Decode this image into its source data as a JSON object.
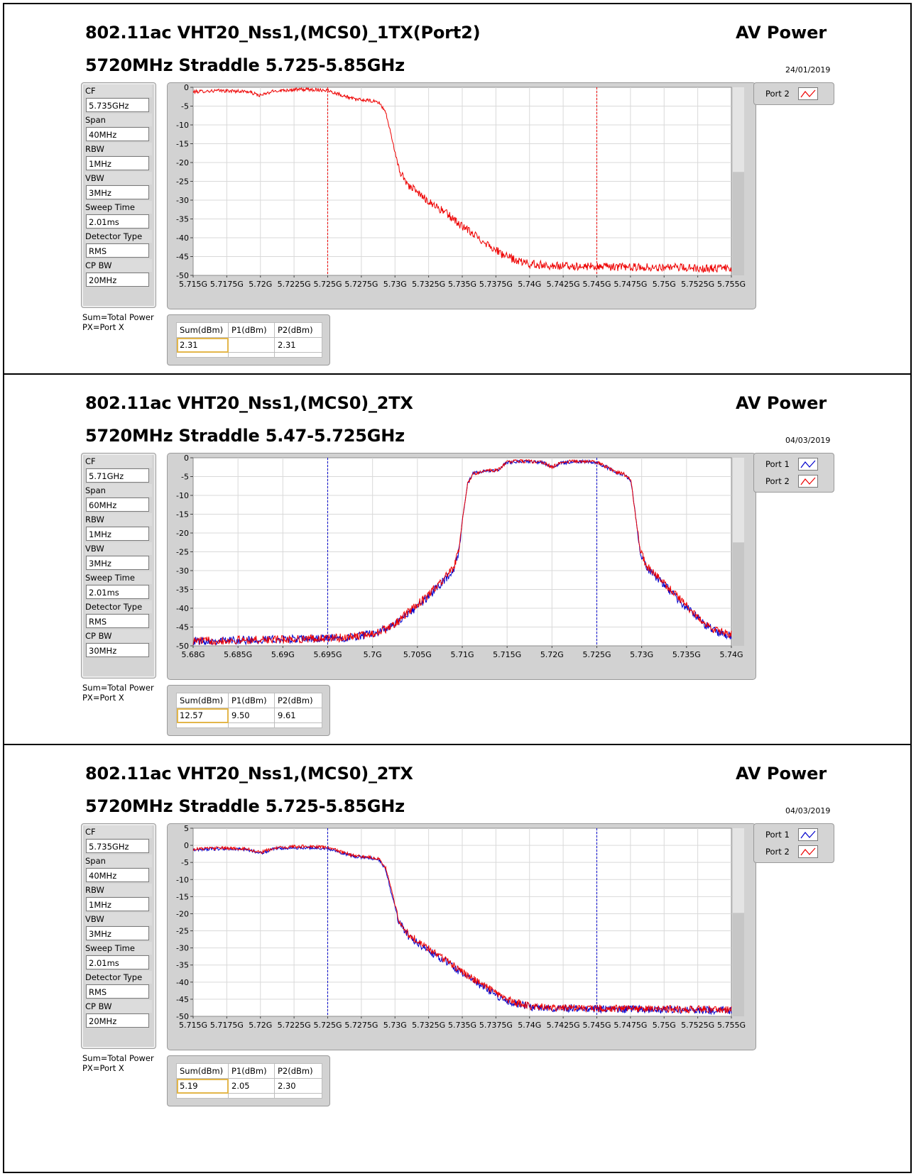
{
  "notes": {
    "sum": "Sum=Total Power",
    "px": "PX=Port X"
  },
  "param_labels": [
    "CF",
    "Span",
    "RBW",
    "VBW",
    "Sweep Time",
    "Detector Type",
    "CP BW"
  ],
  "table_headers": [
    "Sum(dBm)",
    "P1(dBm)",
    "P2(dBm)"
  ],
  "colors": {
    "port1": "#0000cc",
    "port2": "#ee0000",
    "grid": "#d9d9d9",
    "plot_bg": "#ffffff",
    "table_highlight": "#e3b64a"
  },
  "legend_icon": "line-sample-icon",
  "panels": [
    {
      "title1": "802.11ac VHT20_Nss1,(MCS0)_1TX(Port2)",
      "title2": "5720MHz Straddle 5.725-5.85GHz",
      "measure": "AV Power",
      "date": "24/01/2019",
      "params": [
        "5.735GHz",
        "40MHz",
        "1MHz",
        "3MHz",
        "2.01ms",
        "RMS",
        "20MHz"
      ],
      "legend": [
        "Port 2"
      ],
      "table": [
        "2.31",
        "",
        "2.31"
      ]
    },
    {
      "title1": "802.11ac VHT20_Nss1,(MCS0)_2TX",
      "title2": "5720MHz Straddle 5.47-5.725GHz",
      "measure": "AV Power",
      "date": "04/03/2019",
      "params": [
        "5.71GHz",
        "60MHz",
        "1MHz",
        "3MHz",
        "2.01ms",
        "RMS",
        "30MHz"
      ],
      "legend": [
        "Port 1",
        "Port 2"
      ],
      "table": [
        "12.57",
        "9.50",
        "9.61"
      ]
    },
    {
      "title1": "802.11ac VHT20_Nss1,(MCS0)_2TX",
      "title2": "5720MHz Straddle 5.725-5.85GHz",
      "measure": "AV Power",
      "date": "04/03/2019",
      "params": [
        "5.735GHz",
        "40MHz",
        "1MHz",
        "3MHz",
        "2.01ms",
        "RMS",
        "20MHz"
      ],
      "legend": [
        "Port 1",
        "Port 2"
      ],
      "table": [
        "5.19",
        "2.05",
        "2.30"
      ]
    }
  ],
  "chart_data": [
    {
      "type": "line",
      "title": "802.11ac VHT20_Nss1,(MCS0)_1TX(Port2)",
      "xlabel": "",
      "ylabel": "",
      "x_tick_labels": [
        "5.715G",
        "5.7175G",
        "5.72G",
        "5.7225G",
        "5.725G",
        "5.7275G",
        "5.73G",
        "5.7325G",
        "5.735G",
        "5.7375G",
        "5.74G",
        "5.7425G",
        "5.745G",
        "5.7475G",
        "5.75G",
        "5.7525G",
        "5.755G"
      ],
      "xlim_mhz": [
        5715,
        5755
      ],
      "ylim": [
        -50,
        0
      ],
      "y_ticks": [
        0,
        -5,
        -10,
        -15,
        -20,
        -25,
        -30,
        -35,
        -40,
        -45,
        -50
      ],
      "markers_mhz": [
        5725,
        5745
      ],
      "marker_color": "#ee0000",
      "grid": true,
      "series": [
        {
          "name": "Port 2",
          "color": "#ee0000",
          "x_mhz": [
            5715,
            5716,
            5717,
            5718,
            5719,
            5720,
            5720.5,
            5721,
            5722,
            5723,
            5724,
            5725,
            5726,
            5727,
            5728,
            5728.8,
            5729.3,
            5729.8,
            5730.3,
            5731,
            5732,
            5733,
            5734,
            5735,
            5736,
            5737,
            5738,
            5739,
            5740,
            5742,
            5745,
            5750,
            5755
          ],
          "y_dbm": [
            -1.2,
            -1.0,
            -0.9,
            -1.0,
            -1.1,
            -2.2,
            -1.6,
            -1.0,
            -0.7,
            -0.6,
            -0.6,
            -0.8,
            -2.0,
            -3.2,
            -3.5,
            -4.0,
            -6.5,
            -14,
            -22,
            -26,
            -29,
            -31.5,
            -34,
            -37,
            -39.5,
            -42,
            -44.5,
            -46,
            -47,
            -47.5,
            -47.7,
            -47.9,
            -48.2
          ]
        }
      ]
    },
    {
      "type": "line",
      "title": "802.11ac VHT20_Nss1,(MCS0)_2TX",
      "xlabel": "",
      "ylabel": "",
      "x_tick_labels": [
        "5.68G",
        "5.685G",
        "5.69G",
        "5.695G",
        "5.7G",
        "5.705G",
        "5.71G",
        "5.715G",
        "5.72G",
        "5.725G",
        "5.73G",
        "5.735G",
        "5.74G"
      ],
      "xlim_mhz": [
        5680,
        5740
      ],
      "ylim": [
        -50,
        0
      ],
      "y_ticks": [
        0,
        -5,
        -10,
        -15,
        -20,
        -25,
        -30,
        -35,
        -40,
        -45,
        -50
      ],
      "markers_mhz": [
        5695,
        5725
      ],
      "marker_color": "#0000cc",
      "grid": true,
      "series": [
        {
          "name": "Port 1",
          "color": "#0000cc",
          "x_mhz": [
            5680,
            5685,
            5690,
            5695,
            5697,
            5699,
            5700,
            5701,
            5702,
            5703,
            5704,
            5705,
            5706,
            5707,
            5708,
            5709,
            5709.6,
            5710.1,
            5710.6,
            5711.2,
            5712,
            5713,
            5714,
            5715,
            5716,
            5717,
            5718,
            5719,
            5720,
            5721,
            5722,
            5723,
            5724,
            5725,
            5726,
            5727,
            5728,
            5728.8,
            5729.3,
            5729.8,
            5730.5,
            5731,
            5732,
            5733,
            5734,
            5735,
            5736,
            5737,
            5738,
            5739,
            5740
          ],
          "y_dbm": [
            -48.7,
            -48.5,
            -48.3,
            -48.0,
            -47.8,
            -47.2,
            -46.7,
            -46,
            -45,
            -43.5,
            -41.5,
            -39.5,
            -37.5,
            -35,
            -32.5,
            -30,
            -25,
            -15,
            -7,
            -4.2,
            -3.8,
            -3.5,
            -3.3,
            -1.2,
            -1.0,
            -1.0,
            -1.1,
            -1.3,
            -2.6,
            -1.4,
            -1.1,
            -1.0,
            -1.0,
            -1.3,
            -2.4,
            -3.8,
            -4.4,
            -6,
            -15,
            -25,
            -29,
            -30.5,
            -32.5,
            -35,
            -37.5,
            -39.8,
            -42,
            -44.3,
            -45.8,
            -46.8,
            -47.3
          ]
        },
        {
          "name": "Port 2",
          "color": "#ee0000",
          "x_mhz": [
            5680,
            5685,
            5690,
            5695,
            5697,
            5699,
            5700,
            5701,
            5702,
            5703,
            5704,
            5705,
            5706,
            5707,
            5708,
            5709,
            5709.6,
            5710.1,
            5710.6,
            5711.2,
            5712,
            5713,
            5714,
            5715,
            5716,
            5717,
            5718,
            5719,
            5720,
            5721,
            5722,
            5723,
            5724,
            5725,
            5726,
            5727,
            5728,
            5728.8,
            5729.3,
            5729.8,
            5730.5,
            5731,
            5732,
            5733,
            5734,
            5735,
            5736,
            5737,
            5738,
            5739,
            5740
          ],
          "y_dbm": [
            -48.7,
            -48.5,
            -48.3,
            -48.0,
            -47.8,
            -47.2,
            -46.7,
            -46,
            -45,
            -43.2,
            -41,
            -39,
            -37,
            -34.5,
            -32,
            -29.5,
            -25,
            -15,
            -7,
            -4.2,
            -3.8,
            -3.4,
            -3.2,
            -1.1,
            -0.9,
            -0.9,
            -1.0,
            -1.2,
            -2.5,
            -1.3,
            -1.0,
            -0.9,
            -0.9,
            -1.2,
            -2.3,
            -3.7,
            -4.3,
            -6,
            -15,
            -24.5,
            -28.5,
            -30,
            -32,
            -34.5,
            -37,
            -39.3,
            -41.5,
            -43.8,
            -45.5,
            -46.5,
            -47
          ]
        }
      ]
    },
    {
      "type": "line",
      "title": "802.11ac VHT20_Nss1,(MCS0)_2TX",
      "xlabel": "",
      "ylabel": "",
      "x_tick_labels": [
        "5.715G",
        "5.7175G",
        "5.72G",
        "5.7225G",
        "5.725G",
        "5.7275G",
        "5.73G",
        "5.7325G",
        "5.735G",
        "5.7375G",
        "5.74G",
        "5.7425G",
        "5.745G",
        "5.7475G",
        "5.75G",
        "5.7525G",
        "5.755G"
      ],
      "xlim_mhz": [
        5715,
        5755
      ],
      "ylim": [
        -50,
        5
      ],
      "y_ticks": [
        5,
        0,
        -5,
        -10,
        -15,
        -20,
        -25,
        -30,
        -35,
        -40,
        -45,
        -50
      ],
      "markers_mhz": [
        5725,
        5745
      ],
      "marker_color": "#0000cc",
      "grid": true,
      "series": [
        {
          "name": "Port 1",
          "color": "#0000cc",
          "x_mhz": [
            5715,
            5716,
            5717,
            5718,
            5719,
            5720,
            5720.5,
            5721,
            5722,
            5723,
            5724,
            5725,
            5726,
            5727,
            5728,
            5728.8,
            5729.3,
            5729.8,
            5730.3,
            5731,
            5732,
            5733,
            5734,
            5735,
            5736,
            5737,
            5738,
            5739,
            5740,
            5742,
            5745,
            5750,
            5755
          ],
          "y_dbm": [
            -1.3,
            -1.1,
            -1.0,
            -1.1,
            -1.2,
            -2.3,
            -1.7,
            -1.1,
            -0.8,
            -0.7,
            -0.7,
            -0.9,
            -2.1,
            -3.3,
            -3.6,
            -4.1,
            -7,
            -15,
            -22.5,
            -26.5,
            -29.5,
            -32,
            -34.5,
            -37.5,
            -40,
            -42.5,
            -45,
            -46.3,
            -47.2,
            -47.6,
            -47.8,
            -48.0,
            -48.3
          ]
        },
        {
          "name": "Port 2",
          "color": "#ee0000",
          "x_mhz": [
            5715,
            5716,
            5717,
            5718,
            5719,
            5720,
            5720.5,
            5721,
            5722,
            5723,
            5724,
            5725,
            5726,
            5727,
            5728,
            5728.8,
            5729.3,
            5729.8,
            5730.3,
            5731,
            5732,
            5733,
            5734,
            5735,
            5736,
            5737,
            5738,
            5739,
            5740,
            5742,
            5745,
            5750,
            5755
          ],
          "y_dbm": [
            -1.1,
            -0.9,
            -0.8,
            -0.9,
            -1.0,
            -2.1,
            -1.5,
            -0.9,
            -0.5,
            -0.3,
            -0.4,
            -0.6,
            -1.9,
            -3.1,
            -3.4,
            -3.9,
            -6.5,
            -14,
            -22,
            -26,
            -29,
            -31.5,
            -34,
            -37,
            -39.5,
            -42,
            -44.5,
            -46,
            -47,
            -47.5,
            -47.6,
            -47.8,
            -48.1
          ]
        }
      ]
    }
  ]
}
